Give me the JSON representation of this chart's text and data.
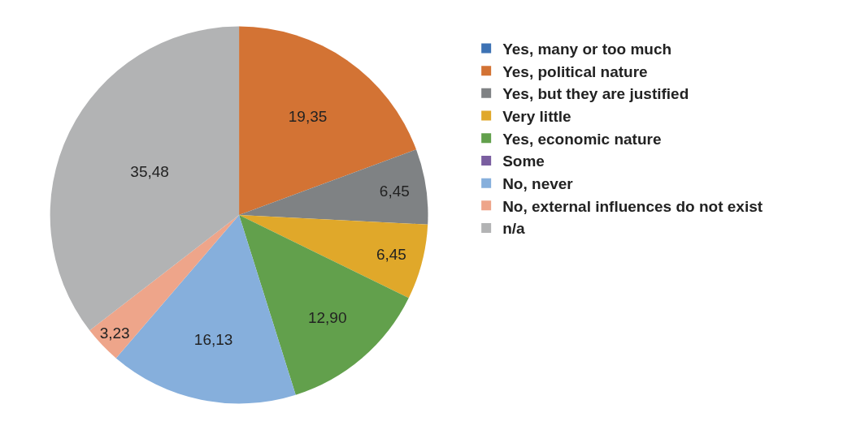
{
  "chart_data": {
    "type": "pie",
    "categories": [
      "Yes, many or too much",
      "Yes, political nature",
      "Yes, but they are justified",
      "Very little",
      "Yes, economic nature",
      "Some",
      "No, never",
      "No, external influences do not exist",
      "n/a"
    ],
    "values": [
      0,
      19.35,
      6.45,
      6.45,
      12.9,
      0,
      16.13,
      3.23,
      35.48
    ],
    "colors": [
      "#3d72b4",
      "#d37334",
      "#7f8284",
      "#e0a82a",
      "#62a04c",
      "#7a5ea0",
      "#86afdc",
      "#eea58a",
      "#b2b3b4"
    ],
    "value_labels": [
      null,
      "19,35",
      "6,45",
      "6,45",
      "12,90",
      null,
      "16,13",
      "3,23",
      "35,48"
    ],
    "legend": "right"
  }
}
